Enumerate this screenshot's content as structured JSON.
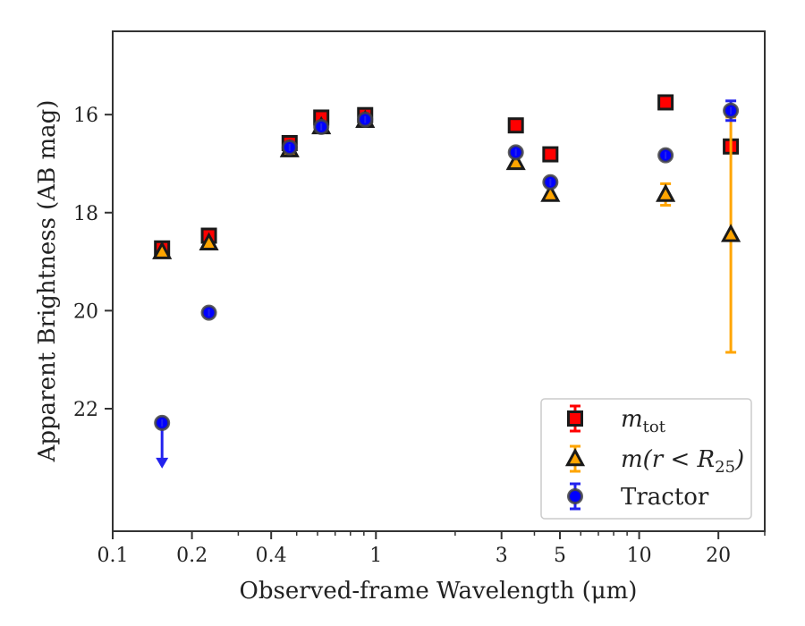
{
  "chart_data": {
    "type": "scatter",
    "title": "",
    "xlabel": "Observed-frame Wavelength (μm)",
    "ylabel": "Apparent Brightness (AB mag)",
    "x_scale": "log",
    "xlim": [
      0.1,
      30
    ],
    "ylim": [
      24.5,
      14.3
    ],
    "y_inverted": true,
    "grid": false,
    "legend_position": "lower-right",
    "x_tick_labels": [
      "0.1",
      "0.2",
      "0.4",
      "1",
      "3",
      "5",
      "10",
      "20"
    ],
    "x_ticks": [
      0.1,
      0.2,
      0.4,
      1,
      3,
      5,
      10,
      20
    ],
    "y_tick_labels": [
      "16",
      "18",
      "20",
      "22"
    ],
    "y_ticks": [
      16,
      18,
      20,
      22
    ],
    "series": [
      {
        "name_main": "m",
        "name_sub": "tot",
        "name_tail": "",
        "marker": "square",
        "color": "#ff0000",
        "errcolor": "#ff0000",
        "x": [
          0.154,
          0.232,
          0.47,
          0.62,
          0.91,
          3.4,
          4.6,
          12.6,
          22.3
        ],
        "y": [
          18.73,
          18.47,
          16.58,
          16.06,
          16.01,
          16.22,
          16.81,
          15.75,
          16.65
        ],
        "err": [
          0,
          0,
          0,
          0,
          0,
          0,
          0,
          0,
          0
        ]
      },
      {
        "name_main": "m(r < R",
        "name_sub": "25",
        "name_tail": ")",
        "marker": "triangle",
        "color": "#ffa500",
        "errcolor": "#ffa500",
        "x": [
          0.154,
          0.232,
          0.47,
          0.62,
          0.91,
          3.4,
          4.6,
          12.6,
          22.3
        ],
        "y": [
          18.8,
          18.62,
          16.72,
          16.25,
          16.12,
          16.98,
          17.63,
          17.63,
          18.45
        ],
        "err": [
          0,
          0,
          0,
          0,
          0,
          0,
          0,
          0.22,
          2.4
        ]
      },
      {
        "name_main": "Tractor",
        "name_sub": "",
        "name_tail": "",
        "marker": "circle",
        "color": "#0000ff",
        "errcolor": "#2222ee",
        "x": [
          0.154,
          0.232,
          0.47,
          0.62,
          0.91,
          3.4,
          4.6,
          12.6,
          22.3
        ],
        "y": [
          22.29,
          20.04,
          16.67,
          16.25,
          16.1,
          16.77,
          17.38,
          16.83,
          15.92
        ],
        "err": [
          0,
          0,
          0,
          0,
          0,
          0,
          0,
          0,
          0.2
        ],
        "upper_limit_index": 0
      }
    ]
  }
}
